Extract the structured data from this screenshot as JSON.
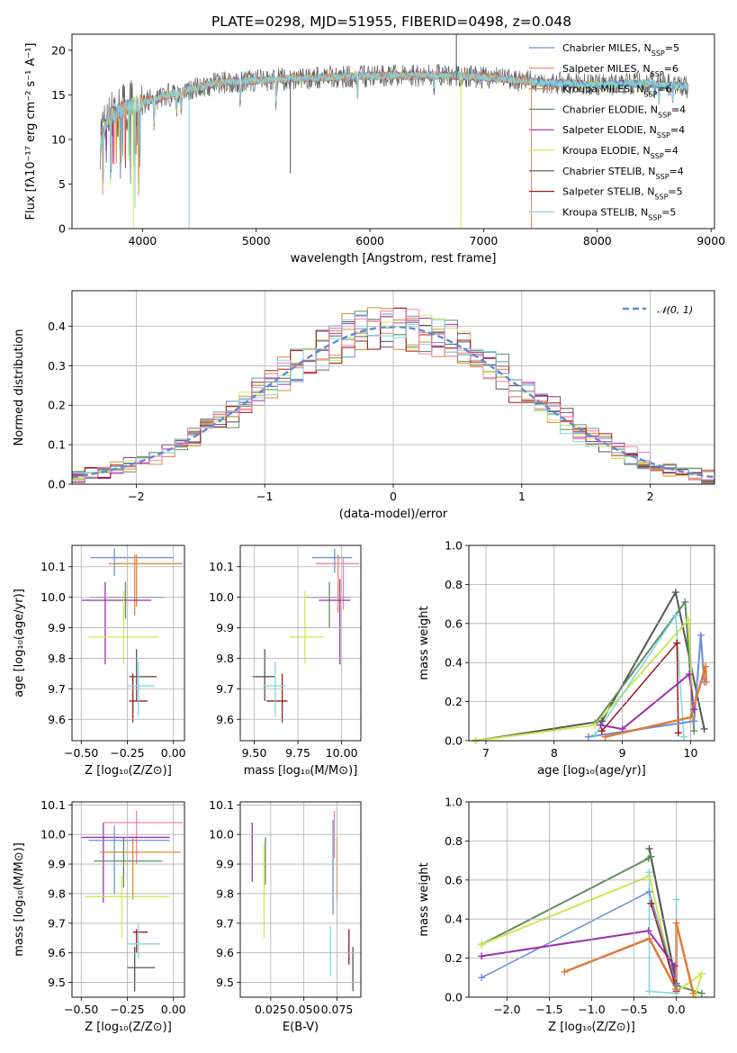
{
  "title": "PLATE=0298, MJD=51955, FIBERID=0498, z=0.048",
  "colors": {
    "chabrier_miles": "#6a8fd9",
    "salpeter_miles": "#f07d55",
    "kroupa_miles": "#d98d2b",
    "chabrier_elodie": "#5e8f5e",
    "salpeter_elodie": "#9b2fae",
    "kroupa_elodie": "#cfe84f",
    "chabrier_stelib": "#555555",
    "salpeter_stelib": "#a01818",
    "kroupa_stelib": "#7fd8dc",
    "pink": "#ee82b4",
    "orange_thick": "#e07a36",
    "normal": "#5b8ad6"
  },
  "chart_data": [
    {
      "id": "spectrum",
      "type": "line",
      "xlabel": "wavelength [Angstrom, rest frame]",
      "ylabel": "Flux [fλ10⁻¹⁷ erg cm⁻² s⁻¹ A⁻¹]",
      "xlim": [
        3380,
        9030
      ],
      "ylim": [
        0,
        21.8
      ],
      "xticks": [
        "4000",
        "5000",
        "6000",
        "7000",
        "8000",
        "9000"
      ],
      "yticks": [
        "0",
        "5",
        "10",
        "15",
        "20"
      ],
      "grid": false,
      "legend_position": "top-right",
      "legend": [
        {
          "name": "Chabrier MILES, N",
          "sub": "SSP",
          "val": "=5"
        },
        {
          "name": "Salpeter MILES, N",
          "sub": "SSP",
          "val": "=6"
        },
        {
          "name": "Kroupa MILES, N",
          "sub": "SSP",
          "val": "=6"
        },
        {
          "name": "Chabrier ELODIE, N",
          "sub": "SSP",
          "val": "=4"
        },
        {
          "name": "Salpeter ELODIE, N",
          "sub": "SSP",
          "val": "=4"
        },
        {
          "name": "Kroupa ELODIE, N",
          "sub": "SSP",
          "val": "=4"
        },
        {
          "name": "Chabrier STELIB, N",
          "sub": "SSP",
          "val": "=4"
        },
        {
          "name": "Salpeter STELIB, N",
          "sub": "SSP",
          "val": "=5"
        },
        {
          "name": "Kroupa STELIB, N",
          "sub": "SSP",
          "val": "=5"
        }
      ],
      "data_range": [
        3630,
        8800
      ],
      "continuum": [
        [
          3630,
          9.5
        ],
        [
          3700,
          12.5
        ],
        [
          3900,
          13.8
        ],
        [
          4100,
          14.5
        ],
        [
          4400,
          15.6
        ],
        [
          4700,
          16.4
        ],
        [
          5000,
          16.6
        ],
        [
          5500,
          16.9
        ],
        [
          6000,
          17.1
        ],
        [
          6500,
          17.2
        ],
        [
          7000,
          17.0
        ],
        [
          7500,
          16.4
        ],
        [
          8000,
          16.1
        ],
        [
          8400,
          16.3
        ],
        [
          8800,
          15.9
        ]
      ],
      "drops": [
        [
          3920,
          0
        ],
        [
          4410,
          0
        ],
        [
          5300,
          6.2
        ],
        [
          6800,
          0
        ],
        [
          7420,
          0
        ]
      ]
    },
    {
      "id": "residuals",
      "type": "histogram",
      "xlabel": "(data-model)/error",
      "ylabel": "Normed distribution",
      "xlim": [
        -2.5,
        2.5
      ],
      "ylim": [
        0,
        0.49
      ],
      "xticks": [
        "−2",
        "−1",
        "0",
        "1",
        "2"
      ],
      "yticks": [
        "0.0",
        "0.1",
        "0.2",
        "0.3",
        "0.4"
      ],
      "grid": true,
      "legend_position": "top-right",
      "legend": [
        "𝒩(0, 1)"
      ],
      "bin_width": 0.1,
      "bin_start": -2.5,
      "normal_curve": {
        "mean": 0,
        "sigma": 1
      }
    },
    {
      "id": "age_vs_Z",
      "type": "errorbar",
      "xlabel": "Z [log₁₀(Z/Z⊙)]",
      "ylabel": "age [log₁₀(age/yr)]",
      "xlim": [
        -0.55,
        0.06
      ],
      "ylim": [
        9.53,
        10.17
      ],
      "xticks": [
        "−0.50",
        "−0.25",
        "0.00"
      ],
      "yticks": [
        "9.6",
        "9.7",
        "9.8",
        "9.9",
        "10.0",
        "10.1"
      ],
      "grid": true,
      "points": [
        {
          "c": "chabrier_miles",
          "x": -0.32,
          "y": 10.13,
          "xl": -0.45,
          "xh": 0.0,
          "yl": 10.07,
          "yh": 10.16
        },
        {
          "c": "salpeter_miles",
          "x": -0.2,
          "y": 10.11,
          "xl": -0.35,
          "xh": 0.05,
          "yl": 9.97,
          "yh": 10.14
        },
        {
          "c": "kroupa_miles",
          "x": -0.21,
          "y": 10.11,
          "xl": -0.33,
          "xh": 0.05,
          "yl": 9.94,
          "yh": 10.14
        },
        {
          "c": "chabrier_elodie",
          "x": -0.26,
          "y": 10.0,
          "xl": -0.45,
          "xh": -0.05,
          "yl": 9.93,
          "yh": 10.05
        },
        {
          "c": "salpeter_elodie",
          "x": -0.37,
          "y": 9.99,
          "xl": -0.5,
          "xh": -0.12,
          "yl": 9.78,
          "yh": 10.05
        },
        {
          "c": "kroupa_elodie",
          "x": -0.27,
          "y": 9.87,
          "xl": -0.46,
          "xh": -0.08,
          "yl": 9.78,
          "yh": 10.02
        },
        {
          "c": "chabrier_stelib",
          "x": -0.2,
          "y": 9.74,
          "xl": -0.24,
          "xh": -0.09,
          "yl": 9.66,
          "yh": 9.83
        },
        {
          "c": "salpeter_stelib",
          "x": -0.22,
          "y": 9.66,
          "xl": -0.24,
          "xh": -0.14,
          "yl": 9.59,
          "yh": 9.75
        },
        {
          "c": "kroupa_stelib",
          "x": -0.19,
          "y": 9.71,
          "xl": -0.25,
          "xh": -0.1,
          "yl": 9.61,
          "yh": 9.79
        }
      ]
    },
    {
      "id": "age_vs_mass",
      "type": "errorbar",
      "xlabel": "mass [log₁₀(M/M⊙)]",
      "ylabel": "",
      "xlim": [
        9.42,
        10.11
      ],
      "ylim": [
        9.53,
        10.17
      ],
      "xticks": [
        "9.50",
        "9.75",
        "10.00"
      ],
      "yticks": [
        "9.6",
        "9.7",
        "9.8",
        "9.9",
        "10.0",
        "10.1"
      ],
      "grid": true,
      "points": [
        {
          "c": "chabrier_miles",
          "x": 9.96,
          "y": 10.13,
          "xl": 9.83,
          "xh": 10.06,
          "yl": 10.08,
          "yh": 10.16
        },
        {
          "c": "salpeter_miles",
          "x": 9.98,
          "y": 10.11,
          "xl": 9.85,
          "xh": 10.1,
          "yl": 9.95,
          "yh": 10.14
        },
        {
          "c": "pink",
          "x": 10.01,
          "y": 10.11,
          "xl": 9.86,
          "xh": 10.1,
          "yl": 9.96,
          "yh": 10.13
        },
        {
          "c": "chabrier_elodie",
          "x": 9.93,
          "y": 10.0,
          "xl": 9.8,
          "xh": 10.05,
          "yl": 9.9,
          "yh": 10.05
        },
        {
          "c": "salpeter_elodie",
          "x": 9.99,
          "y": 9.99,
          "xl": 9.87,
          "xh": 10.05,
          "yl": 9.78,
          "yh": 10.06
        },
        {
          "c": "kroupa_elodie",
          "x": 9.79,
          "y": 9.87,
          "xl": 9.7,
          "xh": 9.9,
          "yl": 9.78,
          "yh": 10.02
        },
        {
          "c": "chabrier_stelib",
          "x": 9.56,
          "y": 9.74,
          "xl": 9.49,
          "xh": 9.62,
          "yl": 9.66,
          "yh": 9.83
        },
        {
          "c": "salpeter_stelib",
          "x": 9.66,
          "y": 9.66,
          "xl": 9.57,
          "xh": 9.69,
          "yl": 9.59,
          "yh": 9.75
        },
        {
          "c": "kroupa_stelib",
          "x": 9.62,
          "y": 9.71,
          "xl": 9.55,
          "xh": 9.68,
          "yl": 9.61,
          "yh": 9.79
        }
      ]
    },
    {
      "id": "weight_vs_age",
      "type": "line",
      "xlabel": "age [log₁₀(age/yr)]",
      "ylabel": "mass weight",
      "xlim": [
        6.75,
        10.35
      ],
      "ylim": [
        0,
        1.0
      ],
      "xticks": [
        "7",
        "8",
        "9",
        "10"
      ],
      "yticks": [
        "0.0",
        "0.2",
        "0.4",
        "0.6",
        "0.8",
        "1.0"
      ],
      "grid": true,
      "series": [
        {
          "c": "chabrier_stelib",
          "w": 2,
          "pts": [
            [
              6.85,
              0.0
            ],
            [
              8.7,
              0.1
            ],
            [
              9.78,
              0.76
            ],
            [
              10.2,
              0.06
            ]
          ]
        },
        {
          "c": "chabrier_elodie",
          "w": 2,
          "pts": [
            [
              8.6,
              0.09
            ],
            [
              9.92,
              0.71
            ],
            [
              10.05,
              0.05
            ]
          ]
        },
        {
          "c": "kroupa_elodie",
          "w": 2,
          "pts": [
            [
              6.85,
              0.0
            ],
            [
              8.6,
              0.08
            ],
            [
              9.97,
              0.62
            ],
            [
              10.05,
              0.1
            ]
          ]
        },
        {
          "c": "kroupa_stelib",
          "w": 1.5,
          "pts": [
            [
              8.6,
              0.03
            ],
            [
              9.78,
              0.64
            ],
            [
              9.9,
              0.02
            ]
          ]
        },
        {
          "c": "salpeter_stelib",
          "w": 1.5,
          "pts": [
            [
              8.7,
              0.05
            ],
            [
              9.8,
              0.5
            ],
            [
              9.82,
              0.04
            ]
          ]
        },
        {
          "c": "salpeter_elodie",
          "w": 2,
          "pts": [
            [
              8.68,
              0.08
            ],
            [
              9.0,
              0.06
            ],
            [
              9.98,
              0.34
            ],
            [
              10.05,
              0.16
            ]
          ]
        },
        {
          "c": "chabrier_miles",
          "w": 2,
          "pts": [
            [
              8.5,
              0.02
            ],
            [
              10.05,
              0.1
            ],
            [
              10.15,
              0.54
            ],
            [
              10.2,
              0.3
            ]
          ]
        },
        {
          "c": "orange_thick",
          "w": 2.5,
          "pts": [
            [
              8.75,
              0.02
            ],
            [
              10.0,
              0.12
            ],
            [
              10.22,
              0.38
            ],
            [
              10.23,
              0.3
            ]
          ]
        }
      ]
    },
    {
      "id": "mass_vs_Z",
      "type": "errorbar",
      "xlabel": "Z [log₁₀(Z/Z⊙)]",
      "ylabel": "mass [log₁₀(M/M⊙)]",
      "xlim": [
        -0.55,
        0.06
      ],
      "ylim": [
        9.45,
        10.11
      ],
      "xticks": [
        "−0.50",
        "−0.25",
        "0.00"
      ],
      "yticks": [
        "9.5",
        "9.6",
        "9.7",
        "9.8",
        "9.9",
        "10.0",
        "10.1"
      ],
      "grid": true,
      "points": [
        {
          "c": "pink",
          "x": -0.2,
          "y": 10.04,
          "xl": -0.38,
          "xh": 0.05,
          "yl": 9.9,
          "yh": 10.08
        },
        {
          "c": "salpeter_elodie",
          "x": -0.38,
          "y": 9.99,
          "xl": -0.5,
          "xh": -0.02,
          "yl": 9.77,
          "yh": 10.04
        },
        {
          "c": "chabrier_miles",
          "x": -0.32,
          "y": 9.98,
          "xl": -0.46,
          "xh": -0.02,
          "yl": 9.8,
          "yh": 10.03
        },
        {
          "c": "kroupa_miles",
          "x": -0.22,
          "y": 9.94,
          "xl": -0.4,
          "xh": 0.04,
          "yl": 9.78,
          "yh": 9.99
        },
        {
          "c": "chabrier_elodie",
          "x": -0.27,
          "y": 9.91,
          "xl": -0.43,
          "xh": -0.06,
          "yl": 9.82,
          "yh": 9.99
        },
        {
          "c": "kroupa_elodie",
          "x": -0.28,
          "y": 9.79,
          "xl": -0.48,
          "xh": -0.02,
          "yl": 9.65,
          "yh": 9.86
        },
        {
          "c": "salpeter_stelib",
          "x": -0.2,
          "y": 9.67,
          "xl": -0.22,
          "xh": -0.14,
          "yl": 9.6,
          "yh": 9.68
        },
        {
          "c": "kroupa_stelib",
          "x": -0.19,
          "y": 9.63,
          "xl": -0.25,
          "xh": -0.07,
          "yl": 9.58,
          "yh": 9.7
        },
        {
          "c": "chabrier_stelib",
          "x": -0.21,
          "y": 9.55,
          "xl": -0.25,
          "xh": -0.1,
          "yl": 9.47,
          "yh": 9.62
        }
      ]
    },
    {
      "id": "mass_vs_ebv",
      "type": "errorbar",
      "xlabel": "E(B-V)",
      "ylabel": "",
      "xlim": [
        0.002,
        0.093
      ],
      "ylim": [
        9.45,
        10.11
      ],
      "xticks": [
        "0.025",
        "0.050",
        "0.075"
      ],
      "yticks": [
        "9.5",
        "9.6",
        "9.7",
        "9.8",
        "9.9",
        "10.0",
        "10.1"
      ],
      "grid": true,
      "points": [
        {
          "c": "pink",
          "x": 0.073,
          "y": 10.0,
          "yl": 9.92,
          "yh": 10.08
        },
        {
          "c": "salpeter_elodie",
          "x": 0.011,
          "y": 9.96,
          "yl": 9.84,
          "yh": 10.04
        },
        {
          "c": "chabrier_miles",
          "x": 0.072,
          "y": 9.97,
          "yl": 9.73,
          "yh": 10.05
        },
        {
          "c": "kroupa_miles",
          "x": 0.075,
          "y": 9.9,
          "yl": 9.78,
          "yh": 9.99
        },
        {
          "c": "chabrier_elodie",
          "x": 0.021,
          "y": 9.92,
          "yl": 9.83,
          "yh": 9.99
        },
        {
          "c": "kroupa_elodie",
          "x": 0.02,
          "y": 9.78,
          "yl": 9.65,
          "yh": 9.97
        },
        {
          "c": "salpeter_stelib",
          "x": 0.084,
          "y": 9.63,
          "yl": 9.56,
          "yh": 9.68
        },
        {
          "c": "kroupa_stelib",
          "x": 0.07,
          "y": 9.6,
          "yl": 9.52,
          "yh": 9.69
        },
        {
          "c": "chabrier_stelib",
          "x": 0.087,
          "y": 9.55,
          "yl": 9.47,
          "yh": 9.62
        }
      ]
    },
    {
      "id": "weight_vs_Z",
      "type": "line",
      "xlabel": "Z [log₁₀(Z/Z⊙)]",
      "ylabel": "mass weight",
      "xlim": [
        -2.45,
        0.45
      ],
      "ylim": [
        0,
        1.0
      ],
      "xticks": [
        "−2.0",
        "−1.5",
        "−1.0",
        "−0.5",
        "0.0"
      ],
      "yticks": [
        "0.0",
        "0.2",
        "0.4",
        "0.6",
        "0.8",
        "1.0"
      ],
      "grid": true,
      "series": [
        {
          "c": "chabrier_elodie",
          "w": 2,
          "pts": [
            [
              -2.3,
              0.27
            ],
            [
              -0.33,
              0.71
            ],
            [
              -0.3,
              0.72
            ],
            [
              0.0,
              0.06
            ],
            [
              0.3,
              0.02
            ]
          ]
        },
        {
          "c": "chabrier_stelib",
          "w": 2,
          "pts": [
            [
              -0.32,
              0.76
            ],
            [
              0.0,
              0.07
            ],
            [
              0.0,
              0.04
            ]
          ]
        },
        {
          "c": "kroupa_elodie",
          "w": 2,
          "pts": [
            [
              -2.3,
              0.27
            ],
            [
              -0.32,
              0.62
            ],
            [
              0.0,
              0.03
            ],
            [
              0.3,
              0.12
            ],
            [
              0.22,
              0.01
            ]
          ]
        },
        {
          "c": "chabrier_miles",
          "w": 1.5,
          "pts": [
            [
              -2.3,
              0.1
            ],
            [
              -0.32,
              0.54
            ],
            [
              0.0,
              0.06
            ]
          ]
        },
        {
          "c": "salpeter_elodie",
          "w": 2,
          "pts": [
            [
              -2.3,
              0.21
            ],
            [
              -0.33,
              0.34
            ],
            [
              -0.02,
              0.16
            ],
            [
              0.0,
              0.03
            ]
          ]
        },
        {
          "c": "kroupa_stelib",
          "w": 1.5,
          "pts": [
            [
              -0.32,
              0.64
            ],
            [
              -0.32,
              0.03
            ],
            [
              0.0,
              0.02
            ],
            [
              0.0,
              0.5
            ]
          ]
        },
        {
          "c": "salpeter_stelib",
          "w": 1.5,
          "pts": [
            [
              -0.3,
              0.48
            ],
            [
              0.0,
              0.04
            ]
          ]
        },
        {
          "c": "orange_thick",
          "w": 2.5,
          "pts": [
            [
              -1.32,
              0.13
            ],
            [
              -0.32,
              0.3
            ],
            [
              0.0,
              0.04
            ],
            [
              0.0,
              0.38
            ],
            [
              0.2,
              0.02
            ]
          ]
        }
      ]
    }
  ]
}
